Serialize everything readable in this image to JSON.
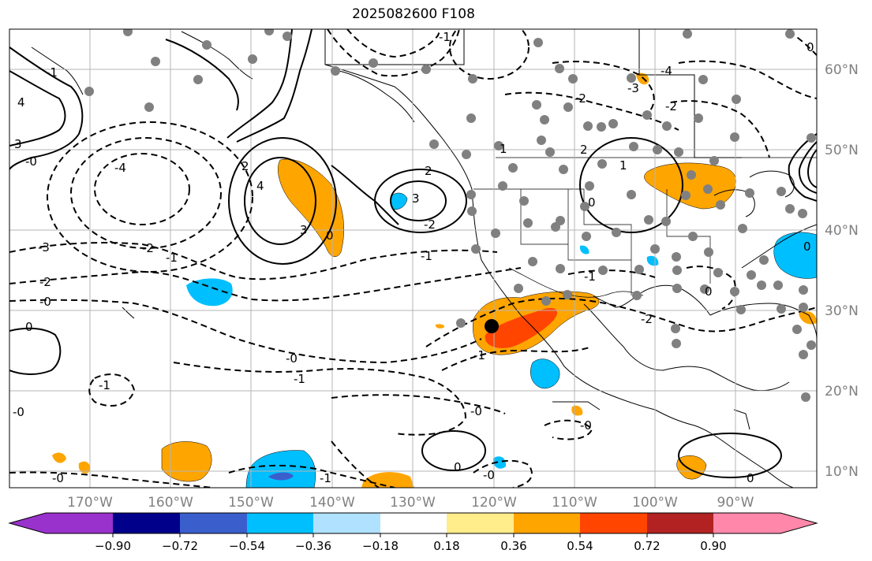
{
  "title": "2025082600 F108",
  "map": {
    "projection": "PlateCarree",
    "lon_range": [
      -180,
      -80
    ],
    "lat_range": [
      7,
      65
    ],
    "grid_lines": true,
    "lon_labels": [
      "170°W",
      "160°W",
      "150°W",
      "140°W",
      "130°W",
      "120°W",
      "110°W",
      "100°W",
      "90°W"
    ],
    "lat_labels": [
      "60°N",
      "50°N",
      "40°N",
      "30°N",
      "20°N",
      "10°N"
    ],
    "marker": {
      "type": "black-dot",
      "lon": -120.5,
      "lat": 27.8
    },
    "station_dots": "gray-circles",
    "contour_labels": [
      "-1",
      "-2",
      "-3",
      "-4",
      "-0",
      "0",
      "1",
      "2",
      "3",
      "4"
    ]
  },
  "colorbar": {
    "ticks": [
      "−0.90",
      "−0.72",
      "−0.54",
      "−0.36",
      "−0.18",
      "0.18",
      "0.36",
      "0.54",
      "0.72",
      "0.90"
    ],
    "colors": [
      "#9932cc",
      "#00008b",
      "#3a5fcd",
      "#00bfff",
      "#b0e2ff",
      "#ffffff",
      "#ffec8b",
      "#ffa500",
      "#ff4500",
      "#b22222",
      "#ff88aa"
    ]
  }
}
